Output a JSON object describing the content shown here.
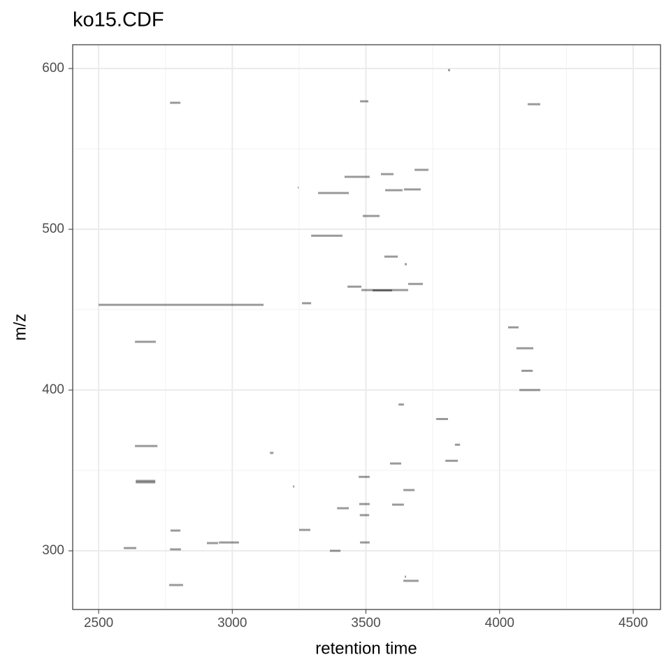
{
  "chart_data": {
    "type": "segment",
    "title": "ko15.CDF",
    "x_label": "retention time",
    "y_label": "m/z",
    "xlim": [
      2403,
      4602
    ],
    "ylim": [
      263.5,
      614.8
    ],
    "xticks": [
      2500,
      3000,
      3500,
      4000,
      4500
    ],
    "yticks": [
      300,
      400,
      500,
      600
    ],
    "xminor": [
      2750,
      3250,
      3750,
      4250
    ],
    "yminor": [
      350,
      450,
      550
    ],
    "grid": true,
    "color": "#000000",
    "opacity": 0.4,
    "x0": [
      2767,
      3478,
      4105,
      3807,
      3245,
      3321,
      3420,
      3556,
      3572,
      3642,
      3682,
      3488,
      3295,
      3569,
      3645,
      3431,
      3483,
      3525,
      3658,
      2500,
      3261,
      2636,
      4032,
      4063,
      4082,
      4074,
      3622,
      3763,
      3833,
      2636,
      3797,
      3590,
      3141,
      2639,
      2639,
      3473,
      3227,
      3640,
      3392,
      3475,
      3477,
      3598,
      2769,
      3250,
      2905,
      2950,
      3478,
      2594,
      2767,
      3365,
      2764,
      3640,
      3645
    ],
    "x1": [
      2806,
      3509,
      4152,
      3815,
      3248,
      3436,
      3514,
      3603,
      3637,
      3705,
      3734,
      3551,
      3412,
      3619,
      3653,
      3483,
      3658,
      3598,
      3713,
      3117,
      3295,
      2714,
      4071,
      4126,
      4124,
      4152,
      3642,
      3807,
      3852,
      2720,
      3844,
      3632,
      3154,
      2712,
      2712,
      3514,
      3232,
      3682,
      3436,
      3514,
      3512,
      3642,
      2806,
      3292,
      2947,
      3025,
      3514,
      2641,
      2808,
      3405,
      2816,
      3697,
      3650
    ],
    "y": [
      578.7,
      579.6,
      577.8,
      599,
      526,
      522.6,
      532.6,
      534.3,
      524.3,
      524.8,
      537,
      508.3,
      496,
      483,
      478.3,
      464.3,
      462.2,
      462,
      466,
      453,
      454,
      430,
      439,
      426,
      412,
      400,
      391,
      382,
      366,
      365.2,
      356,
      354.3,
      360.9,
      343.5,
      342.6,
      346,
      340,
      337.8,
      326.5,
      329.1,
      322.2,
      328.7,
      312.6,
      313,
      304.8,
      305.2,
      305.2,
      301.7,
      300.9,
      300,
      278.7,
      281.3,
      283.9
    ]
  }
}
